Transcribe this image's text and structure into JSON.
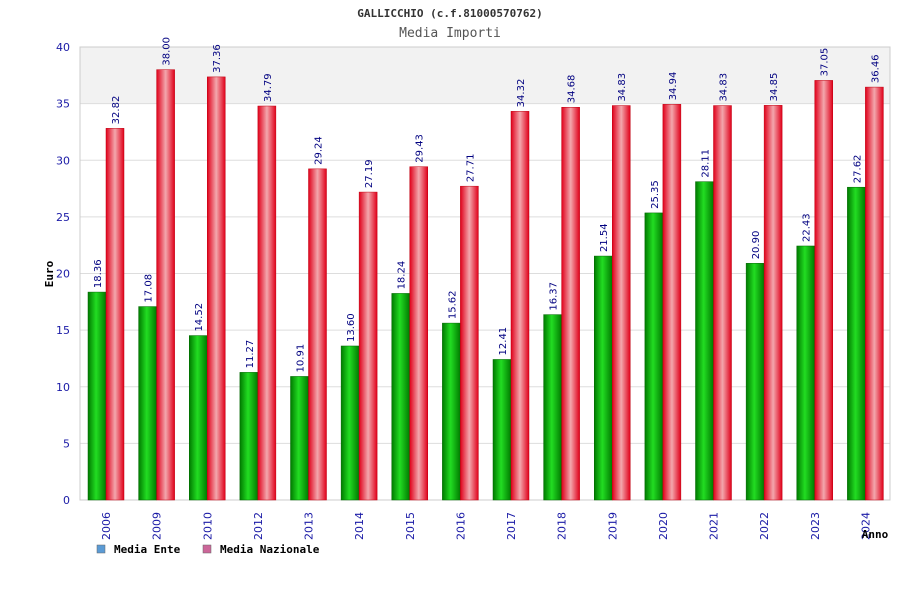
{
  "chart_data": {
    "type": "bar",
    "title": "GALLICCHIO (c.f.81000570762)",
    "subtitle": "Media Importi",
    "xlabel": "Anno",
    "ylabel": "Euro",
    "ylim": [
      0,
      40
    ],
    "yticks": [
      0,
      5,
      10,
      15,
      20,
      25,
      30,
      35,
      40
    ],
    "grid": true,
    "legend_position": "bottom-left",
    "categories": [
      "2006",
      "2009",
      "2010",
      "2012",
      "2013",
      "2014",
      "2015",
      "2016",
      "2017",
      "2018",
      "2019",
      "2020",
      "2021",
      "2022",
      "2023",
      "2024"
    ],
    "series": [
      {
        "name": "Media Ente",
        "color": "#00b000",
        "legend_color": "#5b9bd5",
        "values": [
          18.36,
          17.08,
          14.52,
          11.27,
          10.91,
          13.6,
          18.24,
          15.62,
          12.41,
          16.37,
          21.54,
          25.35,
          28.11,
          20.9,
          22.43,
          27.62
        ],
        "labels": [
          "18.36",
          "17.08",
          "14.52",
          "11.27",
          "10.91",
          "13.60",
          "18.24",
          "15.62",
          "12.41",
          "16.37",
          "21.54",
          "25.35",
          "28.11",
          "20.90",
          "22.43",
          "27.62"
        ]
      },
      {
        "name": "Media Nazionale",
        "color": "#e8101e",
        "legend_color": "#cc6699",
        "values": [
          32.82,
          38.0,
          37.36,
          34.79,
          29.24,
          27.19,
          29.43,
          27.71,
          34.32,
          34.68,
          34.83,
          34.94,
          34.83,
          34.85,
          37.05,
          36.46
        ],
        "labels": [
          "32.82",
          "38.00",
          "37.36",
          "34.79",
          "29.24",
          "27.19",
          "29.43",
          "27.71",
          "34.32",
          "34.68",
          "34.83",
          "34.94",
          "34.83",
          "34.85",
          "37.05",
          "36.46"
        ]
      }
    ]
  }
}
